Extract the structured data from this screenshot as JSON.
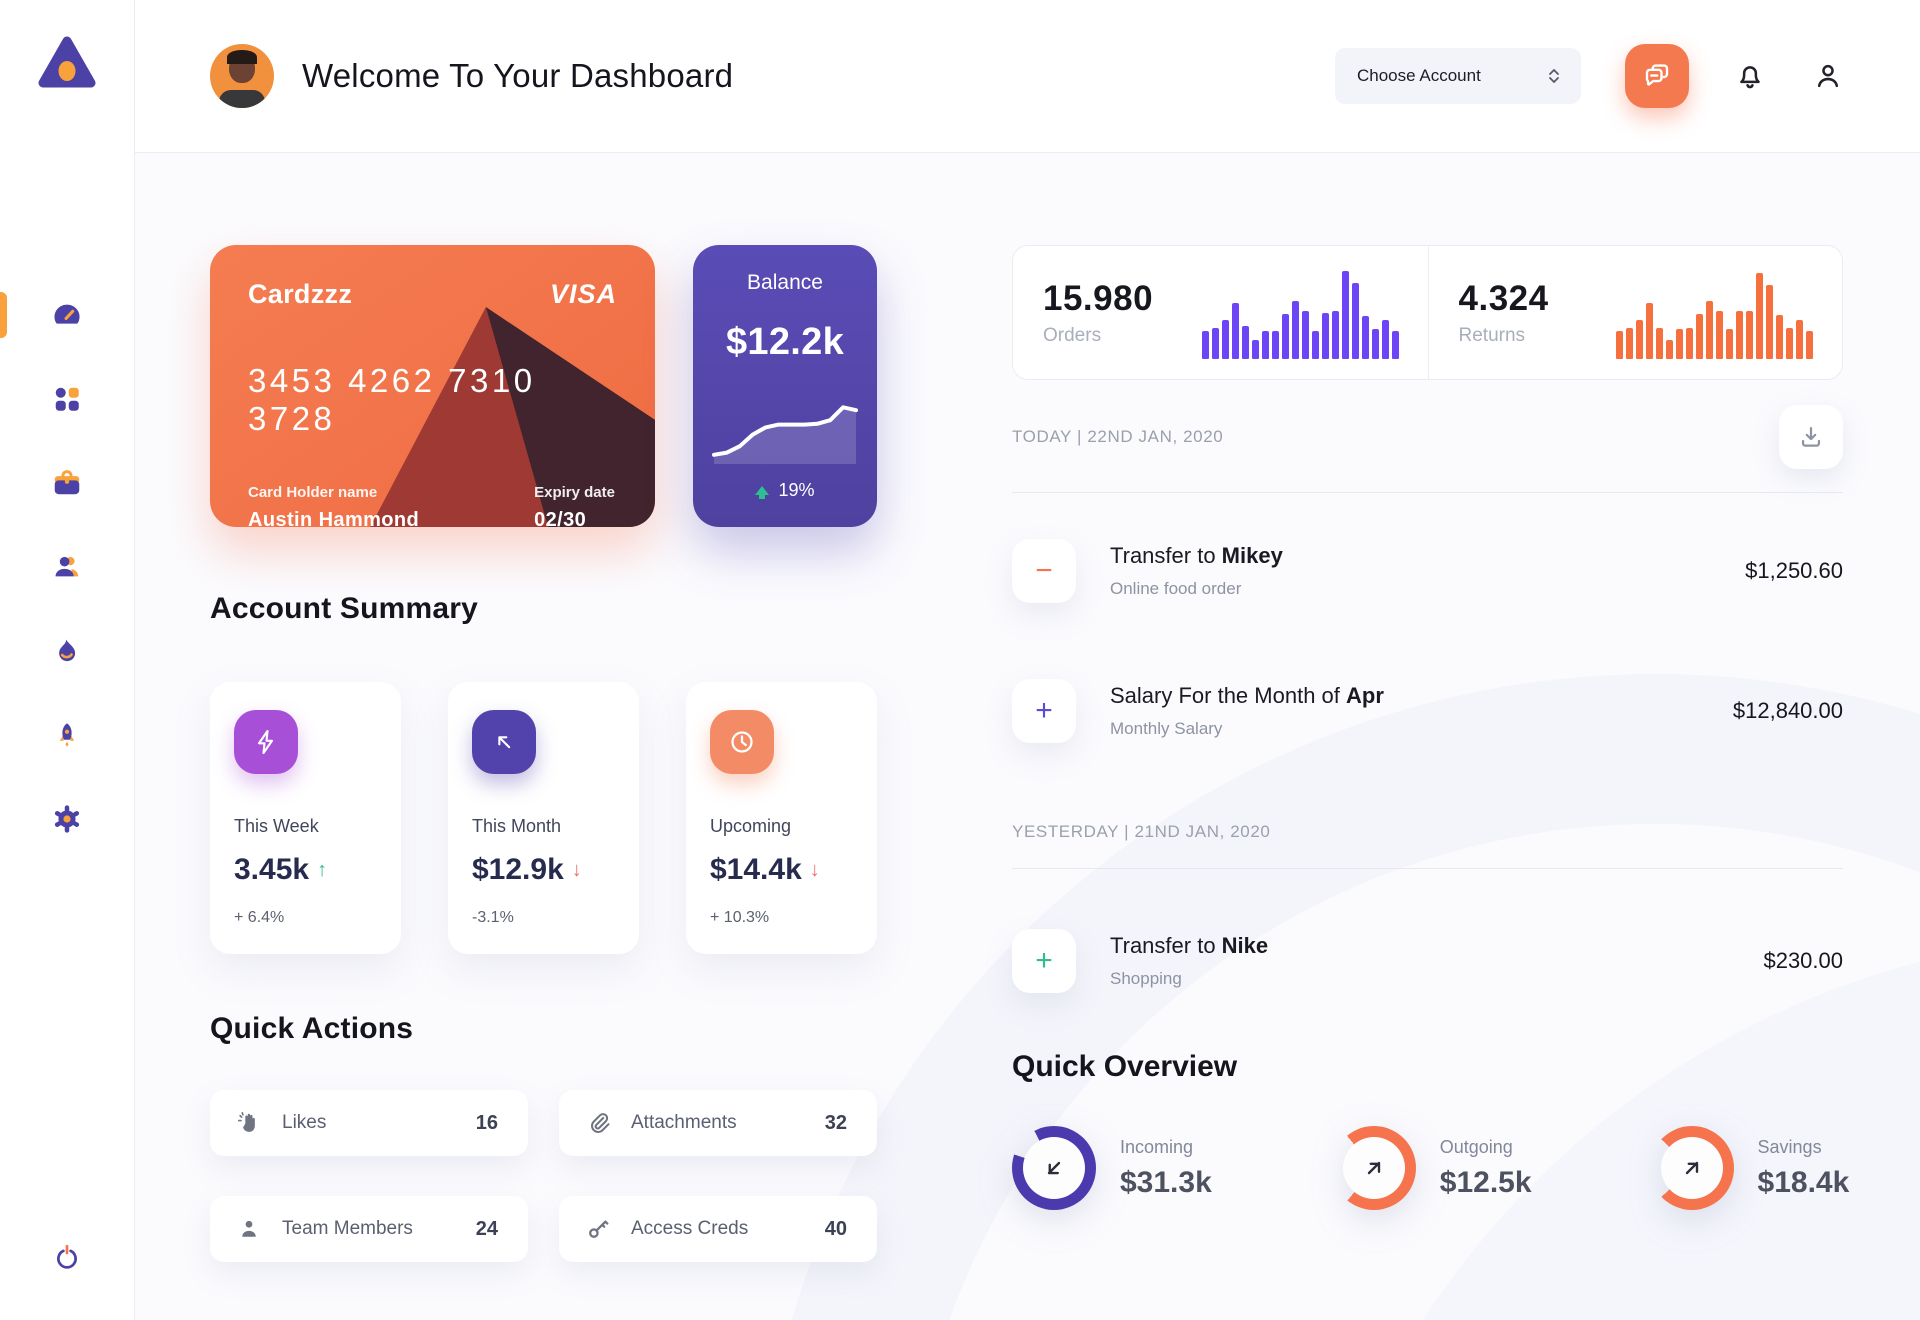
{
  "app": {
    "title": "Welcome To Your Dashboard",
    "account_dropdown": "Choose Account",
    "colors": {
      "accent_orange": "#F5744E",
      "accent_purple": "#564AB1",
      "sidebar_purple": "#4C42A5",
      "sidebar_amber": "#F9A23B",
      "positive_green": "#2FBE8F",
      "negative_red": "#F26D6B"
    }
  },
  "sidebar": {
    "items": [
      {
        "id": "dashboard",
        "icon": "gauge-icon",
        "active": true
      },
      {
        "id": "apps",
        "icon": "grid-icon",
        "active": false
      },
      {
        "id": "portfolio",
        "icon": "briefcase-icon",
        "active": false
      },
      {
        "id": "team",
        "icon": "users-icon",
        "active": false
      },
      {
        "id": "activity",
        "icon": "flame-icon",
        "active": false
      },
      {
        "id": "boost",
        "icon": "rocket-icon",
        "active": false
      },
      {
        "id": "settings",
        "icon": "gear-icon",
        "active": false
      }
    ],
    "logout_icon": "power-icon"
  },
  "credit_card": {
    "name": "Cardzzz",
    "brand": "VISA",
    "number": "3453 4262 7310 3728",
    "holder_label": "Card Holder name",
    "holder_name": "Austin Hammond",
    "expiry_label": "Expiry date",
    "expiry": "02/30"
  },
  "balance_card": {
    "label": "Balance",
    "value": "$12.2k",
    "change": "19%",
    "trend": "up"
  },
  "account_summary": {
    "title": "Account Summary",
    "cards": [
      {
        "label": "This Week",
        "value": "3.45k",
        "arrow": "↑",
        "trend": "up",
        "delta": "+ 6.4%",
        "icon": "lightning-icon"
      },
      {
        "label": "This Month",
        "value": "$12.9k",
        "arrow": "↓",
        "trend": "down",
        "delta": "-3.1%",
        "icon": "arrow-up-left-icon"
      },
      {
        "label": "Upcoming",
        "value": "$14.4k",
        "arrow": "↓",
        "trend": "down",
        "delta": "+ 10.3%",
        "icon": "clock-icon"
      }
    ]
  },
  "quick_actions": {
    "title": "Quick Actions",
    "items": [
      {
        "label": "Likes",
        "count": "16",
        "icon": "clap-icon"
      },
      {
        "label": "Attachments",
        "count": "32",
        "icon": "paperclip-icon"
      },
      {
        "label": "Team Members",
        "count": "24",
        "icon": "person-icon"
      },
      {
        "label": "Access Creds",
        "count": "40",
        "icon": "key-icon"
      }
    ]
  },
  "stats": {
    "orders": {
      "value": "15.980",
      "label": "Orders"
    },
    "returns": {
      "value": "4.324",
      "label": "Returns"
    }
  },
  "transactions": {
    "groups": [
      {
        "date_label": "TODAY | 22ND JAN, 2020",
        "rows": [
          {
            "sign": "−",
            "title_prefix": "Transfer to ",
            "title_bold": "Mikey",
            "subtitle": "Online food order",
            "amount": "$1,250.60",
            "sign_color": "#F5744E"
          },
          {
            "sign": "+",
            "title_prefix": "Salary For the Month of ",
            "title_bold": "Apr",
            "subtitle": "Monthly Salary",
            "amount": "$12,840.00",
            "sign_color": "#5B4BD6"
          }
        ]
      },
      {
        "date_label": "YESTERDAY | 21ND JAN, 2020",
        "rows": [
          {
            "sign": "+",
            "title_prefix": "Transfer to ",
            "title_bold": "Nike",
            "subtitle": "Shopping",
            "amount": "$230.00",
            "sign_color": "#2FBE8F"
          }
        ]
      }
    ]
  },
  "quick_overview": {
    "title": "Quick Overview",
    "items": [
      {
        "label": "Incoming",
        "value": "$31.3k",
        "percent": 88,
        "ring_color": "#4B3AAE",
        "start_deg": 332,
        "arrow": "down-left"
      },
      {
        "label": "Outgoing",
        "value": "$12.5k",
        "percent": 72,
        "ring_color": "#F5744E",
        "start_deg": 320,
        "arrow": "up-right"
      },
      {
        "label": "Savings",
        "value": "$18.4k",
        "percent": 76,
        "ring_color": "#F5744E",
        "start_deg": 313,
        "arrow": "up-right"
      }
    ]
  },
  "chart_data": [
    {
      "type": "bar",
      "title": "Orders activity sparkline",
      "values": [
        30,
        33,
        42,
        60,
        35,
        20,
        30,
        30,
        48,
        63,
        52,
        30,
        50,
        52,
        95,
        82,
        46,
        32,
        42,
        30
      ],
      "color": "#6C46F6"
    },
    {
      "type": "bar",
      "title": "Returns activity sparkline",
      "values": [
        30,
        33,
        42,
        60,
        33,
        20,
        32,
        33,
        48,
        63,
        52,
        32,
        52,
        52,
        93,
        80,
        47,
        33,
        42,
        30
      ],
      "color": "#F5703C"
    },
    {
      "type": "line",
      "title": "Balance trend sparkline",
      "values": [
        10,
        13,
        22,
        38,
        48,
        52,
        52,
        52,
        53,
        58,
        76,
        72
      ],
      "color": "#FFFFFF"
    }
  ]
}
